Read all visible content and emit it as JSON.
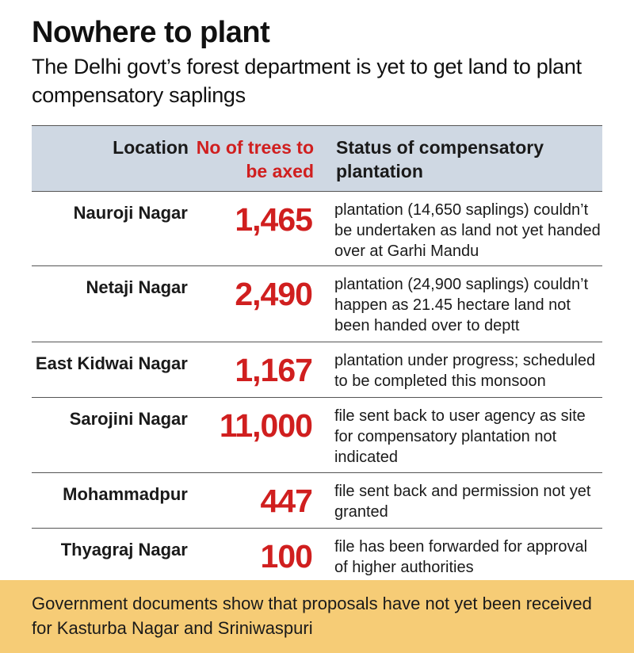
{
  "title": "Nowhere to plant",
  "subtitle": "The Delhi govt’s forest department is yet to get land to plant compensatory saplings",
  "table": {
    "headers": {
      "location": "Location",
      "trees": "No of trees to be axed",
      "status": "Status of compensatory plantation"
    },
    "rows": [
      {
        "location": "Nauroji Nagar",
        "trees": "1,465",
        "status": "plantation (14,650 saplings) couldn’t be undertaken as land not yet handed over at Garhi Mandu"
      },
      {
        "location": "Netaji Nagar",
        "trees": "2,490",
        "status": "plantation (24,900 saplings) couldn’t happen as 21.45 hectare land not been handed over to deptt"
      },
      {
        "location": "East Kidwai Nagar",
        "trees": "1,167",
        "status": "plantation under progress; scheduled to be completed this monsoon"
      },
      {
        "location": "Sarojini Nagar",
        "trees": "11,000",
        "status": "file sent back to user agency as site for compensatory plantation not indicated"
      },
      {
        "location": "Mohammadpur",
        "trees": "447",
        "status": "file sent back and permission not yet granted"
      },
      {
        "location": "Thyagraj Nagar",
        "trees": "100",
        "status": "file has been forwarded for approval of higher authorities"
      }
    ]
  },
  "footer": "Government documents show that proposals have not yet been received for Kasturba Nagar and Sriniwaspuri",
  "colors": {
    "accent_red": "#d01f1f",
    "header_bg": "#cfd8e3",
    "footer_bg": "#f6cc76"
  }
}
